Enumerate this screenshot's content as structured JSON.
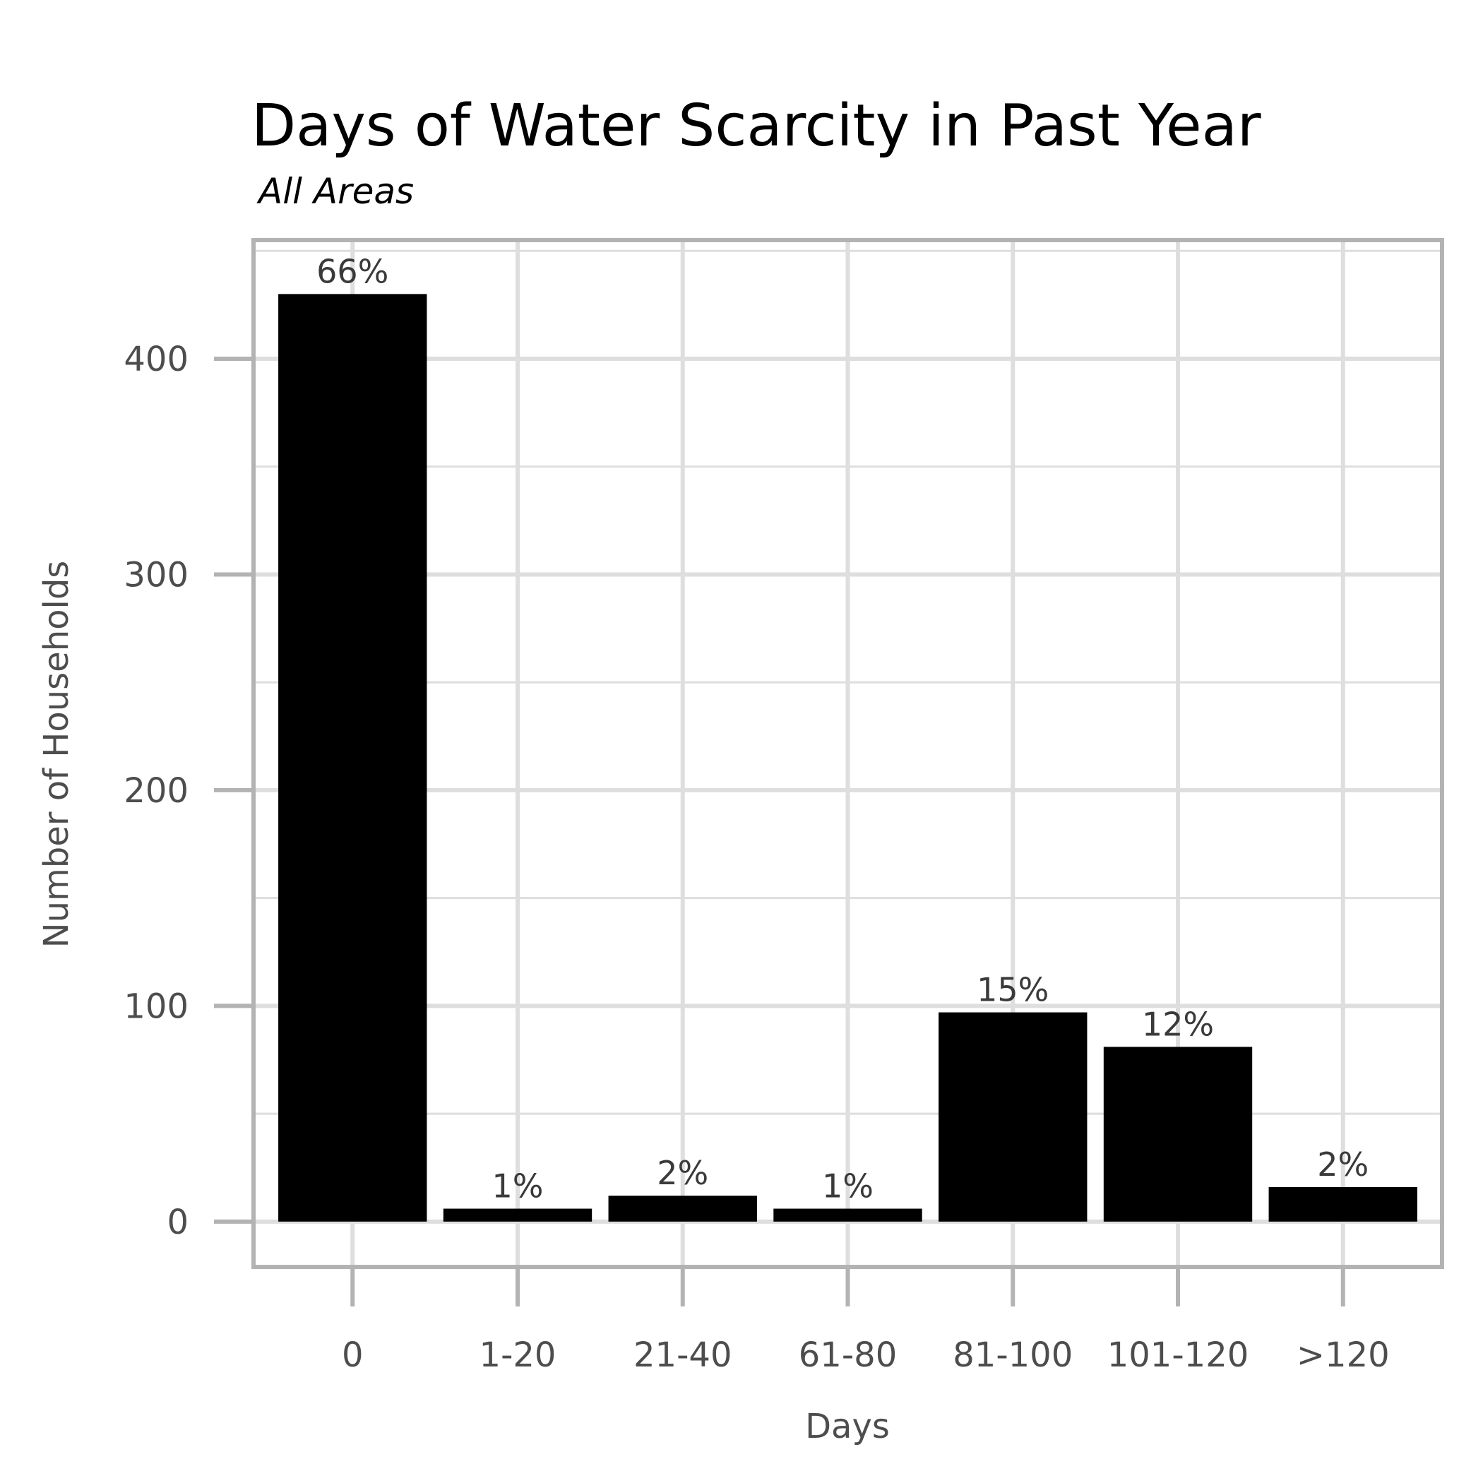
{
  "chart_data": {
    "type": "bar",
    "title": "Days of Water Scarcity in Past Year",
    "subtitle": "All Areas",
    "xlabel": "Days",
    "ylabel": "Number of Households",
    "categories": [
      "0",
      "1-20",
      "21-40",
      "61-80",
      "81-100",
      "101-120",
      ">120"
    ],
    "values": [
      430,
      6,
      12,
      6,
      97,
      81,
      16
    ],
    "data_labels": [
      "66%",
      "1%",
      "2%",
      "1%",
      "15%",
      "12%",
      "2%"
    ],
    "ylim": [
      -21,
      455
    ],
    "yticks": [
      0,
      100,
      200,
      300,
      400
    ],
    "grid": true,
    "colors": {
      "bar": "#000000",
      "grid": "#dedede",
      "frame": "#b3b3b3"
    }
  }
}
